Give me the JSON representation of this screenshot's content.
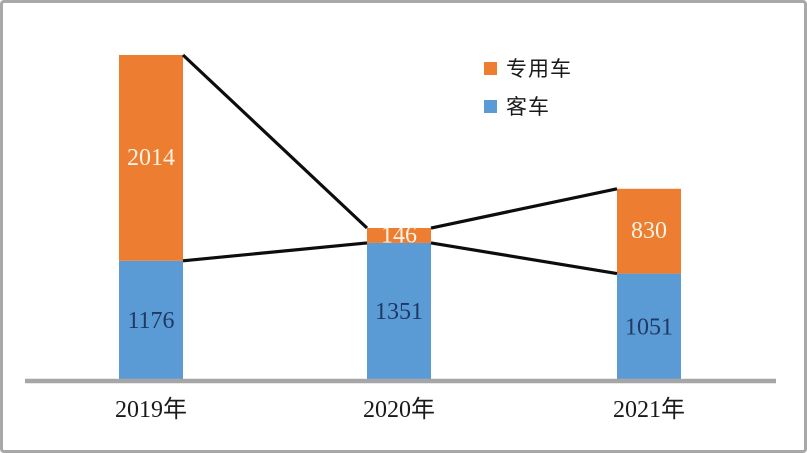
{
  "chart_data": {
    "type": "bar",
    "subtype": "stacked-columns-with-segment-top-connector-lines",
    "categories": [
      "2019年",
      "2020年",
      "2021年"
    ],
    "series": [
      {
        "name": "客车",
        "values": [
          1176,
          1351,
          1051
        ],
        "color": "#5B9BD5",
        "label_color": "#1F3864"
      },
      {
        "name": "专用车",
        "values": [
          2014,
          146,
          830
        ],
        "color": "#ED7D31",
        "label_color": "#FBF3E3"
      }
    ],
    "totals": [
      3190,
      1497,
      1881
    ],
    "data_labels_visible": true,
    "connector_lines": [
      {
        "between": [
          "2019年",
          "2020年"
        ],
        "connects": [
          "top-of-专用车-segment",
          "top-of-客车-segment"
        ]
      },
      {
        "between": [
          "2020年",
          "2021年"
        ],
        "connects": [
          "top-of-专用车-segment",
          "top-of-客车-segment"
        ]
      }
    ],
    "connector_line_color": "#0d0d0d",
    "axis_line_color": "#a6a6a6",
    "x_tick_label_color": "#1a1a1a",
    "grid": false,
    "y_axis_visible": false,
    "legend_position": "top-right-inside"
  },
  "legend": {
    "items": [
      {
        "label": "专用车",
        "color": "#ED7D31"
      },
      {
        "label": "客车",
        "color": "#5B9BD5"
      }
    ]
  }
}
